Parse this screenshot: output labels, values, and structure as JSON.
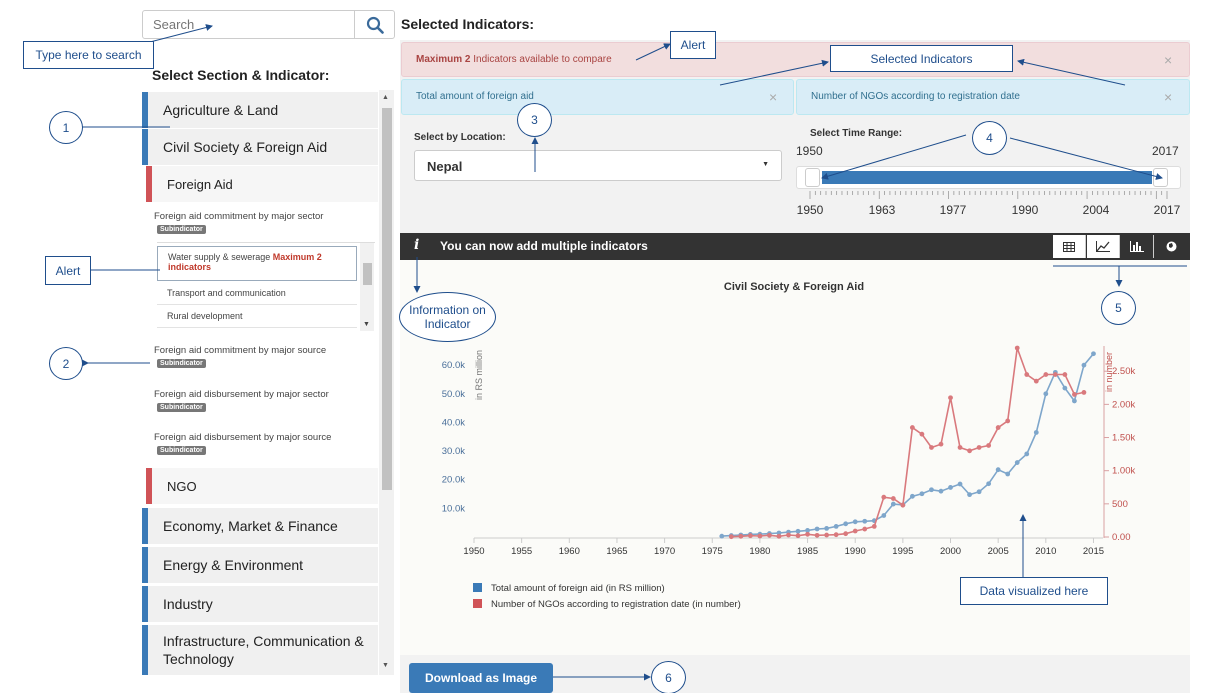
{
  "search": {
    "placeholder": "Search"
  },
  "left": {
    "section_title": "Select Section & Indicator:",
    "sections": [
      {
        "label": "Agriculture & Land"
      },
      {
        "label": "Civil Society & Foreign Aid"
      },
      {
        "label": "Foreign Aid"
      },
      {
        "label": "NGO"
      },
      {
        "label": "Economy, Market & Finance"
      },
      {
        "label": "Energy & Environment"
      },
      {
        "label": "Industry"
      },
      {
        "label": "Infrastructure, Communication & Technology"
      }
    ],
    "subindicators": [
      {
        "title": "Foreign aid commitment by major sector",
        "badge": "Subindicator"
      },
      {
        "title": "Foreign aid commitment by major source",
        "badge": "Subindicator"
      },
      {
        "title": "Foreign aid disbursement by major sector",
        "badge": "Subindicator"
      },
      {
        "title": "Foreign aid disbursement by major source",
        "badge": "Subindicator"
      }
    ],
    "inner_items": [
      {
        "label": "Water supply & sewerage",
        "alert": "Maximum 2 indicators"
      },
      {
        "label": "Transport and communication"
      },
      {
        "label": "Rural development"
      }
    ]
  },
  "right": {
    "selected_title": "Selected Indicators:",
    "alert_bold": "Maximum 2",
    "alert_rest": " Indicators available to compare",
    "close": "×",
    "selected": [
      {
        "label": "Total amount of foreign aid"
      },
      {
        "label": "Number of NGOs according to registration date"
      }
    ],
    "location_label": "Select by Location:",
    "location_value": "Nepal",
    "time_label": "Select Time Range:",
    "time_min": "1950",
    "time_max": "2017",
    "slider_ticks": [
      "1950",
      "1963",
      "1977",
      "1990",
      "2004",
      "2017"
    ],
    "toolbar_text": "You can now add multiple indicators",
    "download_label": "Download as Image"
  },
  "annotations": {
    "type_here": "Type here to search",
    "alert": "Alert",
    "selected_indicators": "Selected Indicators",
    "info": "Information on Indicator",
    "data_here": "Data visualized here",
    "n1": "1",
    "n2": "2",
    "n3": "3",
    "n4": "4",
    "n5": "5",
    "n6": "6"
  },
  "colors": {
    "accent": "#3a7ab7",
    "alert_red": "#a94442",
    "series_blue": "#7ea6cb",
    "series_red": "#d9797d"
  },
  "chart_data": {
    "type": "line",
    "title": "Civil Society & Foreign Aid",
    "x_ticks": [
      "1950",
      "1955",
      "1960",
      "1965",
      "1970",
      "1975",
      "1980",
      "1985",
      "1990",
      "1995",
      "2000",
      "2005",
      "2010",
      "2015"
    ],
    "xlim": [
      1950,
      2016
    ],
    "y_left": {
      "label": "in RS million",
      "ticks": [
        "10.0k",
        "20.0k",
        "30.0k",
        "40.0k",
        "50.0k",
        "60.0k"
      ],
      "lim": [
        0,
        66000
      ]
    },
    "y_right": {
      "label": "in number",
      "ticks": [
        "0.00",
        "500",
        "1.00k",
        "1.50k",
        "2.00k",
        "2.50k"
      ],
      "lim": [
        0,
        2850
      ]
    },
    "series": [
      {
        "name": "Total amount of foreign aid (in RS million)",
        "axis": "left",
        "x": [
          1976,
          1977,
          1978,
          1979,
          1980,
          1981,
          1982,
          1983,
          1984,
          1985,
          1986,
          1987,
          1988,
          1989,
          1990,
          1991,
          1992,
          1993,
          1994,
          1995,
          1996,
          1997,
          1998,
          1999,
          2000,
          2001,
          2002,
          2003,
          2004,
          2005,
          2006,
          2007,
          2008,
          2009,
          2010,
          2011,
          2012,
          2013,
          2014,
          2015
        ],
        "y": [
          300,
          500,
          700,
          900,
          1000,
          1200,
          1400,
          1700,
          2000,
          2300,
          2800,
          3000,
          3700,
          4600,
          5300,
          5500,
          5700,
          7500,
          11500,
          11200,
          14200,
          15100,
          16500,
          16000,
          17300,
          18500,
          14800,
          15800,
          18600,
          23500,
          22000,
          26000,
          29000,
          36500,
          50000,
          57500,
          52000,
          47500,
          60000,
          64000
        ]
      },
      {
        "name": "Number of NGOs according to registration date (in number)",
        "axis": "right",
        "x": [
          1977,
          1978,
          1979,
          1980,
          1981,
          1982,
          1983,
          1984,
          1985,
          1986,
          1987,
          1988,
          1989,
          1990,
          1991,
          1992,
          1993,
          1994,
          1995,
          1996,
          1997,
          1998,
          1999,
          2000,
          2001,
          2002,
          2003,
          2004,
          2005,
          2006,
          2007,
          2008,
          2009,
          2010,
          2011,
          2012,
          2013,
          2014
        ],
        "y": [
          5,
          10,
          20,
          15,
          25,
          10,
          30,
          20,
          40,
          25,
          30,
          35,
          50,
          90,
          120,
          160,
          600,
          580,
          480,
          1650,
          1550,
          1350,
          1400,
          2100,
          1350,
          1300,
          1350,
          1380,
          1650,
          1750,
          2850,
          2450,
          2350,
          2450,
          2450,
          2450,
          2150,
          2180
        ]
      }
    ],
    "legend": "bottom-left"
  }
}
